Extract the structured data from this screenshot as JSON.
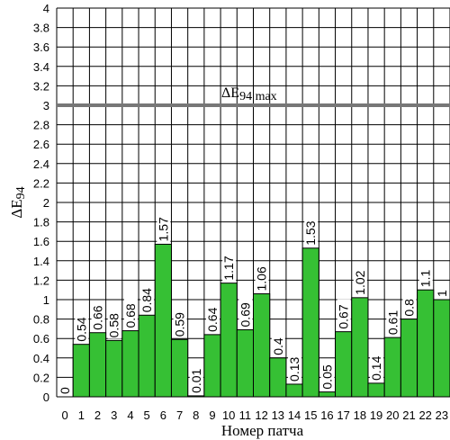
{
  "chart_data": {
    "type": "bar",
    "categories": [
      "0",
      "1",
      "2",
      "3",
      "4",
      "5",
      "6",
      "7",
      "8",
      "9",
      "10",
      "11",
      "12",
      "13",
      "14",
      "15",
      "16",
      "17",
      "18",
      "19",
      "20",
      "21",
      "22",
      "23"
    ],
    "values": [
      0,
      0.54,
      0.66,
      0.58,
      0.68,
      0.84,
      1.57,
      0.59,
      0.01,
      0.64,
      1.17,
      0.69,
      1.06,
      0.4,
      0.13,
      1.53,
      0.05,
      0.67,
      1.02,
      0.14,
      0.61,
      0.8,
      1.1,
      1
    ],
    "value_labels": [
      "0",
      "0.54",
      "0.66",
      "0.58",
      "0.68",
      "0.84",
      "1.57",
      "0.59",
      "0.01",
      "0.64",
      "1.17",
      "0.69",
      "1.06",
      "0.4",
      "0.13",
      "1.53",
      "0.05",
      "0.67",
      "1.02",
      "0.14",
      "0.61",
      "0.8",
      "1.1",
      "1"
    ],
    "xlabel": "Номер патча",
    "ylabel_main": "ΔE",
    "ylabel_sub": "94",
    "ylim": [
      0,
      4
    ],
    "yticks": [
      "0",
      "0.2",
      "0.4",
      "0.6",
      "0.8",
      "1",
      "1.2",
      "1.4",
      "1.6",
      "1.8",
      "2",
      "2.2",
      "2.4",
      "2.6",
      "2.8",
      "3",
      "3.2",
      "3.4",
      "3.6",
      "3.8",
      "4"
    ],
    "grid": true,
    "threshold": {
      "value": 3,
      "label_main": "ΔE",
      "label_sub": "94 max",
      "color": "#777777"
    },
    "colors": {
      "bar_low": "#36c034",
      "bar_high": "#c83028",
      "grid": "#000000"
    }
  }
}
